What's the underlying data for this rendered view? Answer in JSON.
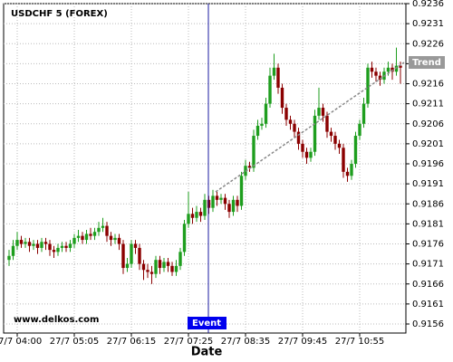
{
  "chart_data": {
    "type": "candlestick",
    "title": "USDCHF 5 (FOREX)",
    "xlabel": "Date",
    "watermark": "www.delkos.com",
    "event_label": "Event",
    "trend_label": "Trend",
    "up_color": "#1e9e1e",
    "down_color": "#8b0000",
    "grid": true,
    "ylim": [
      0.9156,
      0.9236
    ],
    "yticks": [
      0.9156,
      0.9161,
      0.9166,
      0.9171,
      0.9176,
      0.9181,
      0.9186,
      0.9191,
      0.9196,
      0.9201,
      0.9206,
      0.9211,
      0.9216,
      0.9221,
      0.9226,
      0.9231,
      0.9236
    ],
    "categories": [
      null,
      null,
      "27/7 04:00",
      null,
      null,
      null,
      null,
      null,
      null,
      null,
      null,
      null,
      null,
      null,
      null,
      null,
      "27/7 05:05",
      null,
      null,
      null,
      null,
      null,
      null,
      null,
      null,
      null,
      null,
      null,
      null,
      null,
      "27/7 06:15",
      null,
      null,
      null,
      null,
      null,
      null,
      null,
      null,
      null,
      null,
      null,
      null,
      null,
      "27/7 07:25",
      null,
      null,
      null,
      null,
      null,
      null,
      null,
      null,
      null,
      null,
      null,
      null,
      null,
      "27/7 08:35",
      null,
      null,
      null,
      null,
      null,
      null,
      null,
      null,
      null,
      null,
      null,
      null,
      null,
      "27/7 09:45",
      null,
      null,
      null,
      null,
      null,
      null,
      null,
      null,
      null,
      null,
      null,
      null,
      null,
      "27/7 10:55",
      null,
      null,
      null,
      null,
      null,
      null,
      null,
      null,
      null,
      null
    ],
    "open": [
      0.9172,
      0.9173,
      0.91755,
      0.9177,
      0.9176,
      0.91765,
      0.91755,
      0.9176,
      0.9175,
      0.91765,
      0.9176,
      0.91745,
      0.9174,
      0.9175,
      0.91755,
      0.9175,
      0.9176,
      0.91775,
      0.9178,
      0.9177,
      0.91785,
      0.9178,
      0.9179,
      0.918,
      0.91805,
      0.9178,
      0.9177,
      0.91775,
      0.9176,
      0.917,
      0.9171,
      0.9176,
      0.9175,
      0.9171,
      0.91695,
      0.9169,
      0.91685,
      0.9172,
      0.917,
      0.91715,
      0.91705,
      0.9169,
      0.91705,
      0.9174,
      0.9181,
      0.91835,
      0.91825,
      0.9184,
      0.9183,
      0.9187,
      0.9185,
      0.9188,
      0.9187,
      0.91875,
      0.9186,
      0.9184,
      0.9187,
      0.91855,
      0.9193,
      0.91955,
      0.9195,
      0.9203,
      0.92055,
      0.9206,
      0.9211,
      0.9218,
      0.922,
      0.9215,
      0.921,
      0.9207,
      0.9206,
      0.9204,
      0.9201,
      0.9199,
      0.91975,
      0.9199,
      0.9208,
      0.921,
      0.9208,
      0.9204,
      0.9203,
      0.9201,
      0.92,
      0.9194,
      0.9193,
      0.9196,
      0.9203,
      0.9206,
      0.9211,
      0.922,
      0.9219,
      0.9218,
      0.9217,
      0.9219,
      0.922,
      0.9219,
      0.92205
    ],
    "high": [
      0.91745,
      0.9177,
      0.9179,
      0.9178,
      0.91775,
      0.91775,
      0.9177,
      0.9177,
      0.91775,
      0.91775,
      0.9177,
      0.91755,
      0.9176,
      0.91765,
      0.91765,
      0.9177,
      0.91785,
      0.91795,
      0.9179,
      0.91795,
      0.918,
      0.918,
      0.91815,
      0.91825,
      0.91815,
      0.9179,
      0.91785,
      0.91785,
      0.9177,
      0.91725,
      0.9177,
      0.9177,
      0.9176,
      0.9172,
      0.9171,
      0.91705,
      0.9173,
      0.9173,
      0.91725,
      0.91725,
      0.91715,
      0.9172,
      0.9175,
      0.9182,
      0.9189,
      0.9185,
      0.91855,
      0.9185,
      0.91885,
      0.9188,
      0.91895,
      0.9189,
      0.91885,
      0.91885,
      0.9187,
      0.9188,
      0.9188,
      0.9194,
      0.9197,
      0.91965,
      0.92045,
      0.9207,
      0.92075,
      0.92125,
      0.922,
      0.92235,
      0.9221,
      0.9216,
      0.9211,
      0.9208,
      0.9207,
      0.9205,
      0.9202,
      0.92,
      0.92,
      0.92095,
      0.9215,
      0.9211,
      0.9209,
      0.9205,
      0.9204,
      0.9202,
      0.9201,
      0.9195,
      0.9197,
      0.9204,
      0.9207,
      0.92125,
      0.9221,
      0.92215,
      0.922,
      0.9219,
      0.922,
      0.92215,
      0.9221,
      0.9225,
      0.92215
    ],
    "low": [
      0.91705,
      0.9172,
      0.91745,
      0.9175,
      0.9175,
      0.9174,
      0.91745,
      0.91735,
      0.9174,
      0.91745,
      0.9173,
      0.91725,
      0.9173,
      0.9174,
      0.9174,
      0.9174,
      0.9175,
      0.91765,
      0.9176,
      0.9176,
      0.9177,
      0.9177,
      0.9178,
      0.9179,
      0.91765,
      0.91755,
      0.9176,
      0.91745,
      0.91685,
      0.9169,
      0.917,
      0.91735,
      0.91695,
      0.9167,
      0.91675,
      0.9166,
      0.91675,
      0.91685,
      0.9169,
      0.9169,
      0.9168,
      0.9168,
      0.91695,
      0.9173,
      0.918,
      0.9181,
      0.91815,
      0.91815,
      0.9182,
      0.91835,
      0.9184,
      0.91855,
      0.9186,
      0.91845,
      0.91825,
      0.9183,
      0.9184,
      0.91845,
      0.9192,
      0.9194,
      0.9194,
      0.9202,
      0.92045,
      0.9205,
      0.921,
      0.9217,
      0.92135,
      0.92085,
      0.92055,
      0.92045,
      0.92025,
      0.91995,
      0.91975,
      0.9196,
      0.91965,
      0.9198,
      0.9207,
      0.92065,
      0.92025,
      0.92015,
      0.91995,
      0.91985,
      0.91925,
      0.91915,
      0.9192,
      0.9195,
      0.9202,
      0.9205,
      0.921,
      0.92175,
      0.92165,
      0.92155,
      0.9216,
      0.9218,
      0.9217,
      0.9218,
      0.9216
    ],
    "close": [
      0.9173,
      0.91755,
      0.9177,
      0.9176,
      0.91765,
      0.91755,
      0.9176,
      0.9175,
      0.91765,
      0.9176,
      0.91745,
      0.9174,
      0.9175,
      0.91755,
      0.9175,
      0.9176,
      0.91775,
      0.9178,
      0.9177,
      0.91785,
      0.9178,
      0.9179,
      0.918,
      0.91805,
      0.9178,
      0.9177,
      0.91775,
      0.9176,
      0.917,
      0.9171,
      0.9176,
      0.9175,
      0.9171,
      0.91695,
      0.9169,
      0.91685,
      0.9172,
      0.917,
      0.91715,
      0.91705,
      0.9169,
      0.91705,
      0.9174,
      0.9181,
      0.91835,
      0.91825,
      0.9184,
      0.9183,
      0.9187,
      0.9185,
      0.9188,
      0.9187,
      0.91875,
      0.9186,
      0.9184,
      0.9187,
      0.91855,
      0.9193,
      0.91955,
      0.9195,
      0.9203,
      0.92055,
      0.9206,
      0.9211,
      0.9218,
      0.922,
      0.9215,
      0.921,
      0.9207,
      0.9206,
      0.9204,
      0.9201,
      0.9199,
      0.91975,
      0.9199,
      0.9208,
      0.921,
      0.9208,
      0.9204,
      0.9203,
      0.9201,
      0.92,
      0.9194,
      0.9193,
      0.9196,
      0.9203,
      0.9206,
      0.9211,
      0.922,
      0.9219,
      0.9218,
      0.9217,
      0.9219,
      0.922,
      0.9219,
      0.92205,
      0.922
    ]
  }
}
